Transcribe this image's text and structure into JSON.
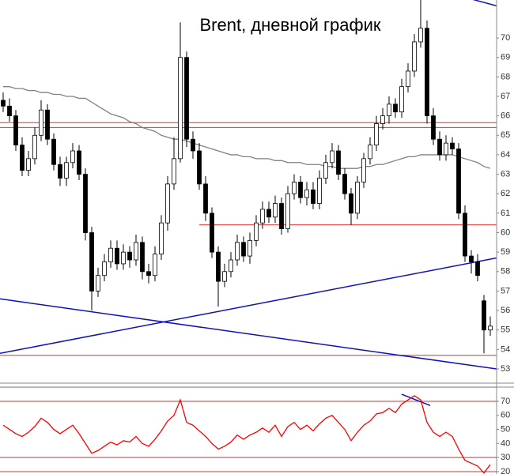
{
  "chart_data": [
    {
      "type": "candlestick",
      "title": "Brent, дневной график",
      "ylim": [
        52.27,
        71.95
      ],
      "yticks": [
        53,
        54,
        55,
        56,
        57,
        58,
        59,
        60,
        61,
        62,
        63,
        64,
        65,
        66,
        67,
        68,
        69,
        70
      ],
      "up_color": "#ffffff",
      "down_color": "#000000",
      "open": [
        66.8,
        66.5,
        66.0,
        64.5,
        63.2,
        63.8,
        65.0,
        66.3,
        64.8,
        63.5,
        62.8,
        63.6,
        64.2,
        63.0,
        60.0,
        57.0,
        57.8,
        58.5,
        59.2,
        58.4,
        59.0,
        58.6,
        59.5,
        58.0,
        57.8,
        58.9,
        60.5,
        62.5,
        63.8,
        69.0,
        64.8,
        64.2,
        62.5,
        61.0,
        59.0,
        57.5,
        58.0,
        58.6,
        59.5,
        58.8,
        59.6,
        60.5,
        61.2,
        60.8,
        61.5,
        60.2,
        62.0,
        62.6,
        61.8,
        62.2,
        61.5,
        62.8,
        63.6,
        64.2,
        63.0,
        62.0,
        61.0,
        62.6,
        63.8,
        64.5,
        65.6,
        66.0,
        66.6,
        66.2,
        67.5,
        68.3,
        69.8,
        70.5,
        66.0,
        64.8,
        64.0,
        64.6,
        64.3,
        61.0,
        58.8,
        58.5,
        56.5,
        55.0
      ],
      "high": [
        67.2,
        66.9,
        66.3,
        64.9,
        64.2,
        65.4,
        66.8,
        66.6,
        65.1,
        63.9,
        63.9,
        64.6,
        64.5,
        63.3,
        60.3,
        58.2,
        58.9,
        59.6,
        59.6,
        59.4,
        59.3,
        59.9,
        59.8,
        58.4,
        59.3,
        60.9,
        62.9,
        64.9,
        70.8,
        69.3,
        65.2,
        64.6,
        62.9,
        61.3,
        59.3,
        58.4,
        59.0,
        59.9,
        59.8,
        60.0,
        60.9,
        61.6,
        61.6,
        61.9,
        61.8,
        62.4,
        63.0,
        62.9,
        62.6,
        62.6,
        63.2,
        64.0,
        64.6,
        64.5,
        63.3,
        62.3,
        62.9,
        64.1,
        64.9,
        66.0,
        66.4,
        67.0,
        66.9,
        67.9,
        68.7,
        70.2,
        72.0,
        70.9,
        66.4,
        65.2,
        65.0,
        64.9,
        64.6,
        61.4,
        59.1,
        58.9,
        56.8,
        55.7
      ],
      "low": [
        66.2,
        65.7,
        64.2,
        62.9,
        62.9,
        63.5,
        64.7,
        64.5,
        63.2,
        62.4,
        62.4,
        63.3,
        62.7,
        59.6,
        56.0,
        56.7,
        57.5,
        58.2,
        58.1,
        58.1,
        58.2,
        58.3,
        57.6,
        57.4,
        57.5,
        58.6,
        60.1,
        62.2,
        63.6,
        64.4,
        63.8,
        62.2,
        60.6,
        58.7,
        56.2,
        57.2,
        57.7,
        58.3,
        58.5,
        58.4,
        59.3,
        60.2,
        60.5,
        60.5,
        59.9,
        60.0,
        61.7,
        61.5,
        61.4,
        61.2,
        61.2,
        62.5,
        63.3,
        62.7,
        61.7,
        60.4,
        60.7,
        62.3,
        63.5,
        64.2,
        65.3,
        65.6,
        65.9,
        65.9,
        67.2,
        68.0,
        69.5,
        65.6,
        64.5,
        63.7,
        63.7,
        64.0,
        60.7,
        58.5,
        57.9,
        57.5,
        53.8,
        54.7
      ],
      "close": [
        66.5,
        66.0,
        64.5,
        63.2,
        63.8,
        65.0,
        66.3,
        64.8,
        63.5,
        62.8,
        63.6,
        64.2,
        63.0,
        60.0,
        57.0,
        57.8,
        58.5,
        59.2,
        58.4,
        59.0,
        58.6,
        59.5,
        58.0,
        57.8,
        58.9,
        60.5,
        62.5,
        63.8,
        69.0,
        64.8,
        64.2,
        62.5,
        61.0,
        59.0,
        57.5,
        58.0,
        58.6,
        59.5,
        58.8,
        59.6,
        60.5,
        61.2,
        60.8,
        61.5,
        60.2,
        62.0,
        62.6,
        61.8,
        62.2,
        61.5,
        62.8,
        63.6,
        64.2,
        63.0,
        62.0,
        61.0,
        62.6,
        63.8,
        64.5,
        65.6,
        66.0,
        66.6,
        66.2,
        67.5,
        68.3,
        69.8,
        70.5,
        66.0,
        64.8,
        64.0,
        64.6,
        64.3,
        61.0,
        58.8,
        58.5,
        57.8,
        55.0,
        55.2
      ],
      "series": [
        {
          "color": "#808080",
          "values": [
            67.5,
            67.5,
            67.4,
            67.4,
            67.3,
            67.3,
            67.2,
            67.2,
            67.1,
            67.1,
            67.0,
            67.0,
            66.9,
            66.9,
            66.7,
            66.5,
            66.3,
            66.1,
            66.0,
            65.9,
            65.7,
            65.6,
            65.4,
            65.3,
            65.2,
            65.0,
            64.9,
            64.8,
            64.8,
            64.7,
            64.6,
            64.5,
            64.4,
            64.3,
            64.2,
            64.1,
            64.0,
            64.0,
            63.9,
            63.9,
            63.8,
            63.8,
            63.8,
            63.7,
            63.7,
            63.6,
            63.6,
            63.6,
            63.5,
            63.5,
            63.5,
            63.4,
            63.4,
            63.3,
            63.3,
            63.3,
            63.3,
            63.4,
            63.4,
            63.5,
            63.5,
            63.6,
            63.7,
            63.8,
            63.9,
            63.9,
            64.0,
            64.0,
            64.0,
            64.0,
            64.0,
            64.0,
            63.9,
            63.8,
            63.7,
            63.6,
            63.4,
            63.3
          ]
        }
      ],
      "levels": [
        {
          "value": 65.65,
          "color": "#e03030"
        },
        {
          "value": 65.4,
          "color": "#e03030"
        },
        {
          "value": 60.4,
          "from": 31,
          "color": "#e03030"
        },
        {
          "value": 53.7,
          "color": "#e03030"
        }
      ],
      "trend_lines": [
        {
          "from": [
            -0.5,
            53.8
          ],
          "to": [
            78,
            58.7
          ],
          "color": "#1010c0"
        },
        {
          "from": [
            -0.5,
            56.6
          ],
          "to": [
            78,
            53.0
          ],
          "color": "#1010c0"
        },
        {
          "from": [
            74,
            72.0
          ],
          "to": [
            78,
            71.65
          ],
          "color": "#1010c0"
        }
      ]
    },
    {
      "type": "line",
      "ylim": [
        18.3,
        80.1
      ],
      "yticks": [
        20,
        30,
        40,
        50,
        60,
        70
      ],
      "series": [
        {
          "color": "#ff0000",
          "values": [
            53,
            50,
            47,
            45,
            48,
            52,
            58,
            55,
            50,
            47,
            50,
            53,
            47,
            40,
            33,
            35,
            38,
            41,
            39,
            42,
            41,
            45,
            40,
            38,
            43,
            49,
            56,
            60,
            71,
            55,
            53,
            49,
            45,
            40,
            36,
            38,
            41,
            46,
            43,
            46,
            48,
            51,
            48,
            53,
            45,
            52,
            55,
            50,
            53,
            49,
            54,
            58,
            60,
            55,
            50,
            42,
            48,
            53,
            56,
            61,
            62,
            65,
            62,
            68,
            71,
            74,
            71,
            55,
            48,
            45,
            48,
            45,
            36,
            28,
            26,
            24,
            19,
            25
          ]
        }
      ],
      "levels": [
        {
          "value": 80,
          "color": "#e03030"
        },
        {
          "value": 70,
          "color": "#e03030"
        },
        {
          "value": 30,
          "color": "#e03030"
        },
        {
          "value": 20,
          "color": "#e03030"
        }
      ],
      "trend_lines": [
        {
          "from": [
            63,
            75
          ],
          "to": [
            67.5,
            67
          ],
          "color": "#1010c0"
        }
      ]
    }
  ]
}
